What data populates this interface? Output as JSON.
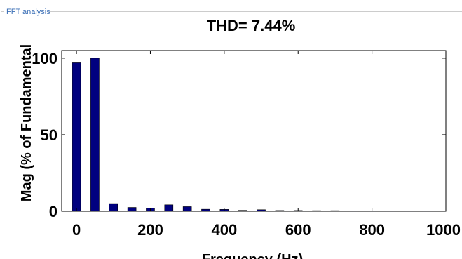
{
  "panel": {
    "title": "FFT analysis"
  },
  "chart_data": {
    "type": "bar",
    "title": "THD= 7.44%",
    "xlabel": "Frequency (Hz)",
    "ylabel": "Mag (% of Fundamental",
    "xlim": [
      -40,
      1000
    ],
    "ylim": [
      0,
      105
    ],
    "xticks": [
      0,
      200,
      400,
      600,
      800,
      1000
    ],
    "yticks": [
      0,
      50,
      100
    ],
    "bar_color": "#00007f",
    "grid": false,
    "x": [
      0,
      50,
      100,
      150,
      200,
      250,
      300,
      350,
      400,
      450,
      500,
      550,
      600,
      650,
      700,
      750,
      800,
      850,
      900,
      950
    ],
    "values": [
      97,
      100,
      5,
      2.5,
      2,
      4.2,
      3,
      1.3,
      1.2,
      0.6,
      1.0,
      0.5,
      0.5,
      0.4,
      0.4,
      0.3,
      0.3,
      0.3,
      0.3,
      0.3
    ]
  }
}
